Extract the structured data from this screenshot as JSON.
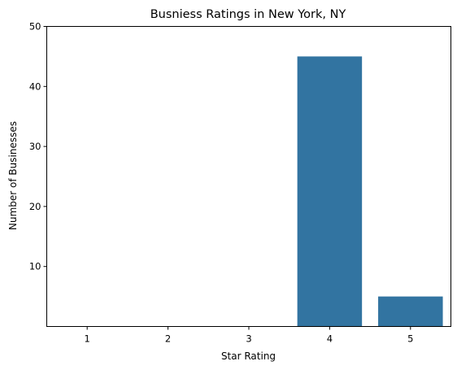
{
  "chart_data": {
    "type": "bar",
    "title": "Busniess Ratings in New York, NY",
    "xlabel": "Star Rating",
    "ylabel": "Number of Businesses",
    "categories": [
      "1",
      "2",
      "3",
      "4",
      "5"
    ],
    "values": [
      0,
      0,
      0,
      45,
      5
    ],
    "ylim": [
      0,
      50
    ],
    "yticks": [
      10,
      20,
      30,
      40,
      50
    ],
    "bar_color": "#3274a1",
    "grid": false,
    "legend": "none"
  }
}
